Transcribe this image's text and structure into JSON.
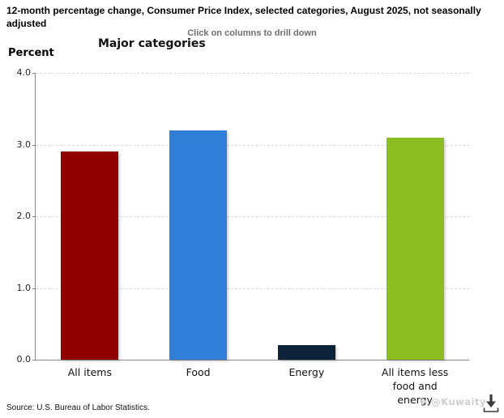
{
  "header": {
    "title": "12-month percentage change, Consumer Price Index, selected categories, August 2025, not seasonally adjusted",
    "subtitle": "Click on columns to drill down"
  },
  "chart_data": {
    "type": "bar",
    "title": "Major categories",
    "ylabel": "Percent",
    "xlabel": "",
    "categories": [
      "All items",
      "Food",
      "Energy",
      "All items less food and energy"
    ],
    "values": [
      2.9,
      3.2,
      0.2,
      3.1
    ],
    "colors": [
      "#910000",
      "#2f7ed8",
      "#0d233a",
      "#8bbc21"
    ],
    "ylim": [
      0,
      4
    ],
    "yticks": [
      0,
      1,
      2,
      3,
      4
    ],
    "ytick_labels": [
      "0.0",
      "1.0",
      "2.0",
      "3.0",
      "4.0"
    ],
    "grid": "horizontal-dashed",
    "legend_position": "none"
  },
  "footer": {
    "source": "Source: U.S. Bureau of Labor Statistics."
  },
  "watermark": {
    "icon_glyph": "❖",
    "text": "@Kuwaity"
  },
  "export": {
    "icon": "download-icon"
  }
}
